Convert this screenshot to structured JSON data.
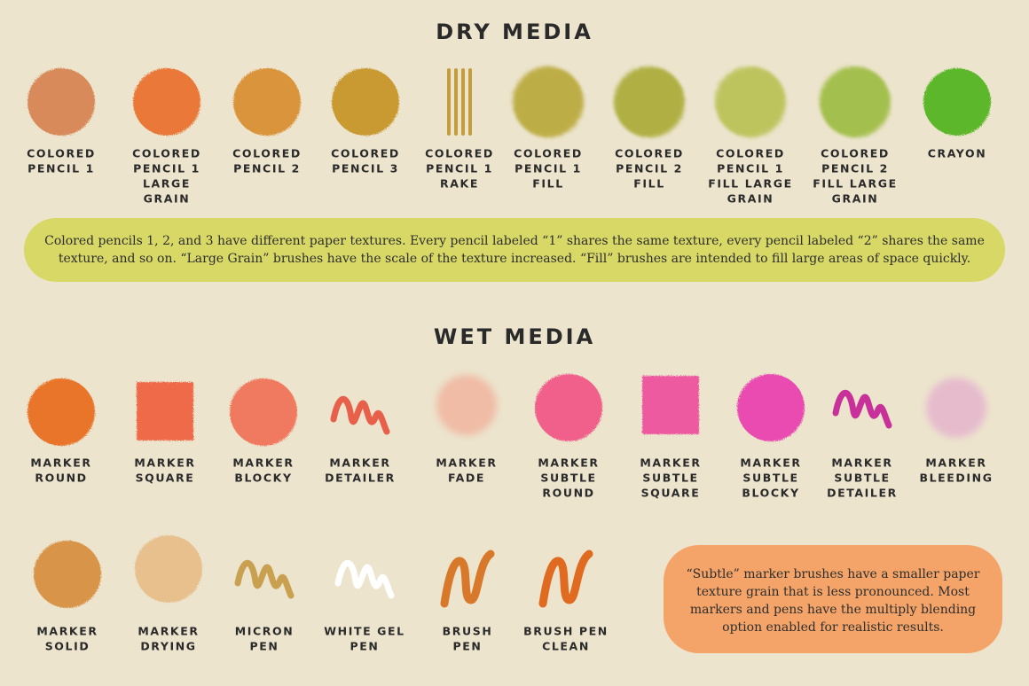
{
  "dry_media": {
    "title": "DRY MEDIA",
    "items": [
      [
        "COLORED",
        "PENCIL 1"
      ],
      [
        "COLORED",
        "PENCIL 1",
        "LARGE",
        "GRAIN"
      ],
      [
        "COLORED",
        "PENCIL 2"
      ],
      [
        "COLORED",
        "PENCIL 3"
      ],
      [
        "COLORED",
        "PENCIL 1",
        "RAKE"
      ],
      [
        "COLORED",
        "PENCIL 1",
        "FILL"
      ],
      [
        "COLORED",
        "PENCIL 2",
        "FILL"
      ],
      [
        "COLORED",
        "PENCIL 1",
        "FILL LARGE",
        "GRAIN"
      ],
      [
        "COLORED",
        "PENCIL 2",
        "FILL LARGE",
        "GRAIN"
      ],
      [
        "CRAYON"
      ]
    ],
    "note": [
      "Colored pencils 1, 2, and 3 have different paper textures. Every pencil labeled “1” shares the same texture, every pencil labeled “2” shares the same",
      "texture, and so on. “Large Grain” brushes have the scale of the texture increased. “Fill” brushes are intended to fill large areas of space quickly."
    ]
  },
  "wet_media": {
    "title": "WET MEDIA",
    "items": [
      [
        "MARKER",
        "ROUND"
      ],
      [
        "MARKER",
        "SQUARE"
      ],
      [
        "MARKER",
        "BLOCKY"
      ],
      [
        "MARKER",
        "DETAILER"
      ],
      [
        "MARKER",
        "FADE"
      ],
      [
        "MARKER",
        "SUBTLE",
        "ROUND"
      ],
      [
        "MARKER",
        "SUBTLE",
        "SQUARE"
      ],
      [
        "MARKER",
        "SUBTLE",
        "BLOCKY"
      ],
      [
        "MARKER",
        "SUBTLE",
        "DETAILER"
      ],
      [
        "MARKER",
        "BLEEDING"
      ],
      [
        "MARKER",
        "SOLID"
      ],
      [
        "MARKER",
        "DRYING"
      ],
      [
        "MICRON",
        "PEN"
      ],
      [
        "WHITE GEL",
        "PEN"
      ],
      [
        "BRUSH",
        "PEN"
      ],
      [
        "BRUSH PEN",
        "CLEAN"
      ]
    ],
    "note": [
      "“Subtle” marker brushes have a smaller paper",
      "texture grain that is less pronounced. Most",
      "markers and pens have the multiply blending",
      "option enabled for realistic results."
    ]
  }
}
